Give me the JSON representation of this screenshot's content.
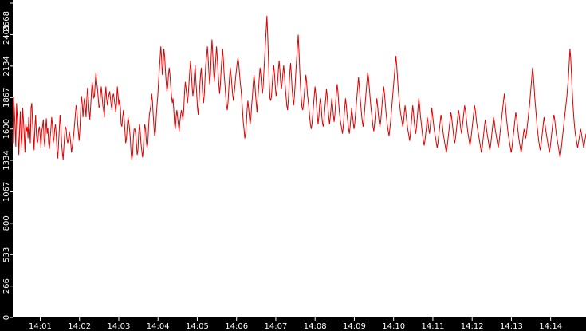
{
  "chart_data": {
    "type": "line",
    "title": "",
    "xlabel": "",
    "ylabel": "",
    "grid": false,
    "legend": "none",
    "line_color": "#e00000",
    "background_color": "#ffffff",
    "axis_band_color": "#000000",
    "marker_color": "#1f3fbf",
    "ylim": [
      0,
      2668
    ],
    "yticks": [
      "0",
      "266",
      "533",
      "800",
      "1067",
      "1334",
      "1600",
      "1867",
      "2134",
      "2401",
      "2668"
    ],
    "xlim": [
      "14:00:18",
      "14:14:54"
    ],
    "xticks": [
      "14:01",
      "14:02",
      "14:03",
      "14:04",
      "14:05",
      "14:06",
      "14:07",
      "14:08",
      "14:09",
      "14:10",
      "14:11",
      "14:12",
      "14:13",
      "14:14"
    ],
    "x_start": "14:00:18",
    "x_step_seconds": 1,
    "series": [
      {
        "values": [
          1480,
          1870,
          1780,
          1620,
          1450,
          1820,
          1700,
          1550,
          1380,
          1600,
          1750,
          1520,
          1440,
          1780,
          1680,
          1560,
          1400,
          1640,
          1580,
          1620,
          1520,
          1700,
          1600,
          1480,
          1780,
          1820,
          1650,
          1550,
          1420,
          1610,
          1720,
          1560,
          1480,
          1500,
          1590,
          1620,
          1540,
          1440,
          1580,
          1620,
          1680,
          1520,
          1450,
          1600,
          1690,
          1560,
          1610,
          1480,
          1430,
          1520,
          1600,
          1700,
          1640,
          1480,
          1520,
          1600,
          1640,
          1550,
          1420,
          1350,
          1470,
          1600,
          1720,
          1630,
          1480,
          1400,
          1340,
          1450,
          1550,
          1620,
          1600,
          1520,
          1480,
          1510,
          1580,
          1540,
          1480,
          1400,
          1450,
          1500,
          1560,
          1640,
          1720,
          1800,
          1760,
          1650,
          1580,
          1500,
          1600,
          1760,
          1880,
          1820,
          1700,
          1800,
          1860,
          1790,
          1700,
          1850,
          1950,
          1870,
          1760,
          1680,
          1780,
          1900,
          2000,
          1950,
          1860,
          1880,
          1980,
          2080,
          2000,
          1940,
          1860,
          1780,
          1800,
          1900,
          1960,
          1880,
          1800,
          1760,
          1700,
          1860,
          1960,
          1860,
          1800,
          1850,
          1890,
          1920,
          1860,
          1800,
          1760,
          1880,
          1900,
          1850,
          1800,
          1740,
          1820,
          1960,
          1880,
          1800,
          1850,
          1780,
          1640,
          1620,
          1700,
          1760,
          1680,
          1580,
          1480,
          1520,
          1620,
          1700,
          1660,
          1600,
          1520,
          1400,
          1340,
          1380,
          1520,
          1600,
          1600,
          1560,
          1480,
          1380,
          1420,
          1560,
          1640,
          1580,
          1480,
          1420,
          1360,
          1420,
          1560,
          1640,
          1600,
          1500,
          1440,
          1480,
          1620,
          1720,
          1760,
          1800,
          1900,
          1840,
          1720,
          1620,
          1540,
          1580,
          1700,
          1800,
          1880,
          2000,
          2100,
          2200,
          2300,
          2200,
          2060,
          2140,
          2280,
          2220,
          2100,
          2000,
          1920,
          1960,
          2060,
          2120,
          2060,
          1960,
          1880,
          1820,
          1860,
          1760,
          1640,
          1600,
          1700,
          1760,
          1700,
          1640,
          1580,
          1660,
          1720,
          1760,
          1720,
          1680,
          1760,
          1900,
          2000,
          1950,
          1880,
          1820,
          1900,
          2000,
          2100,
          2180,
          2080,
          1960,
          1880,
          1940,
          2060,
          2140,
          2000,
          1900,
          1780,
          1720,
          1820,
          1960,
          2060,
          2120,
          2000,
          1880,
          1820,
          1900,
          2040,
          2160,
          2220,
          2300,
          2200,
          2080,
          1980,
          2060,
          2220,
          2360,
          2240,
          2100,
          2000,
          2080,
          2200,
          2300,
          2200,
          2080,
          1980,
          1900,
          1980,
          2100,
          2200,
          2280,
          2180,
          2060,
          1980,
          1880,
          1800,
          1760,
          1820,
          1940,
          2040,
          2120,
          2060,
          1980,
          1900,
          1840,
          1900,
          1960,
          2040,
          2100,
          2160,
          2200,
          2160,
          2080,
          2000,
          1940,
          1860,
          1760,
          1660,
          1600,
          1520,
          1560,
          1640,
          1760,
          1840,
          1780,
          1700,
          1640,
          1700,
          1800,
          1880,
          1980,
          2060,
          2000,
          1900,
          1820,
          1740,
          1840,
          1940,
          2040,
          2120,
          2060,
          1960,
          1900,
          1960,
          2080,
          2200,
          2320,
          2440,
          2560,
          2400,
          2200,
          2000,
          1860,
          1840,
          1880,
          1980,
          2080,
          2140,
          2060,
          1960,
          1880,
          1920,
          2000,
          2100,
          2180,
          2100,
          2000,
          1940,
          2000,
          2080,
          2140,
          2060,
          1960,
          1880,
          1800,
          1760,
          1840,
          1960,
          2080,
          2160,
          2060,
          1940,
          1860,
          1800,
          1880,
          1980,
          2100,
          2200,
          2300,
          2400,
          2260,
          2100,
          1960,
          1860,
          1780,
          1760,
          1820,
          1900,
          1980,
          2060,
          2000,
          1900,
          1840,
          1780,
          1700,
          1640,
          1600,
          1640,
          1720,
          1800,
          1880,
          1960,
          1900,
          1800,
          1720,
          1640,
          1700,
          1800,
          1860,
          1800,
          1700,
          1640,
          1620,
          1700,
          1780,
          1860,
          1940,
          1880,
          1780,
          1700,
          1640,
          1700,
          1780,
          1860,
          1800,
          1720,
          1660,
          1720,
          1820,
          1900,
          1980,
          1920,
          1820,
          1740,
          1680,
          1640,
          1600,
          1560,
          1620,
          1700,
          1780,
          1860,
          1800,
          1720,
          1660,
          1600,
          1560,
          1620,
          1700,
          1780,
          1720,
          1660,
          1600,
          1640,
          1720,
          1800,
          1880,
          1960,
          2040,
          1960,
          1880,
          1800,
          1720,
          1660,
          1620,
          1680,
          1760,
          1840,
          1920,
          2000,
          2080,
          2040,
          1960,
          1880,
          1800,
          1740,
          1680,
          1620,
          1580,
          1640,
          1720,
          1800,
          1860,
          1800,
          1720,
          1660,
          1620,
          1660,
          1740,
          1820,
          1900,
          1960,
          1900,
          1820,
          1740,
          1680,
          1620,
          1580,
          1540,
          1600,
          1660,
          1740,
          1820,
          1900,
          1980,
          2060,
          2140,
          2220,
          2140,
          2040,
          1940,
          1860,
          1800,
          1740,
          1700,
          1660,
          1620,
          1660,
          1740,
          1800,
          1740,
          1680,
          1620,
          1580,
          1540,
          1500,
          1560,
          1640,
          1720,
          1800,
          1740,
          1660,
          1600,
          1560,
          1620,
          1700,
          1780,
          1860,
          1800,
          1720,
          1660,
          1600,
          1540,
          1500,
          1460,
          1500,
          1560,
          1620,
          1700,
          1660,
          1600,
          1560,
          1620,
          1700,
          1780,
          1720,
          1660,
          1600,
          1560,
          1520,
          1480,
          1440,
          1480,
          1540,
          1600,
          1660,
          1720,
          1680,
          1620,
          1560,
          1520,
          1480,
          1440,
          1400,
          1440,
          1500,
          1560,
          1620,
          1680,
          1740,
          1700,
          1640,
          1580,
          1520,
          1480,
          1520,
          1580,
          1640,
          1700,
          1760,
          1720,
          1660,
          1600,
          1560,
          1620,
          1680,
          1740,
          1800,
          1760,
          1700,
          1640,
          1580,
          1540,
          1500,
          1460,
          1500,
          1560,
          1620,
          1680,
          1740,
          1800,
          1760,
          1700,
          1640,
          1600,
          1560,
          1520,
          1480,
          1440,
          1400,
          1440,
          1500,
          1560,
          1620,
          1680,
          1640,
          1580,
          1540,
          1500,
          1460,
          1420,
          1460,
          1520,
          1580,
          1640,
          1700,
          1660,
          1600,
          1560,
          1520,
          1480,
          1440,
          1480,
          1540,
          1600,
          1660,
          1720,
          1780,
          1840,
          1900,
          1840,
          1760,
          1680,
          1620,
          1560,
          1520,
          1480,
          1440,
          1400,
          1440,
          1500,
          1560,
          1620,
          1680,
          1740,
          1700,
          1640,
          1580,
          1520,
          1480,
          1440,
          1400,
          1440,
          1500,
          1560,
          1600,
          1560,
          1520,
          1560,
          1620,
          1680,
          1740,
          1800,
          1880,
          1960,
          2040,
          2120,
          2060,
          1960,
          1860,
          1780,
          1700,
          1620,
          1560,
          1500,
          1460,
          1420,
          1460,
          1520,
          1580,
          1640,
          1700,
          1660,
          1600,
          1560,
          1520,
          1480,
          1440,
          1400,
          1440,
          1500,
          1560,
          1620,
          1680,
          1720,
          1680,
          1620,
          1560,
          1520,
          1480,
          1440,
          1400,
          1360,
          1400,
          1460,
          1520,
          1580,
          1640,
          1700,
          1760,
          1820,
          1880,
          1960,
          2040,
          2160,
          2280,
          2200,
          2060,
          1920,
          1800,
          1700,
          1620,
          1560,
          1520,
          1480,
          1440,
          1480,
          1520,
          1560,
          1600,
          1560,
          1520,
          1480,
          1440,
          1480,
          1520,
          1560
        ]
      }
    ]
  }
}
